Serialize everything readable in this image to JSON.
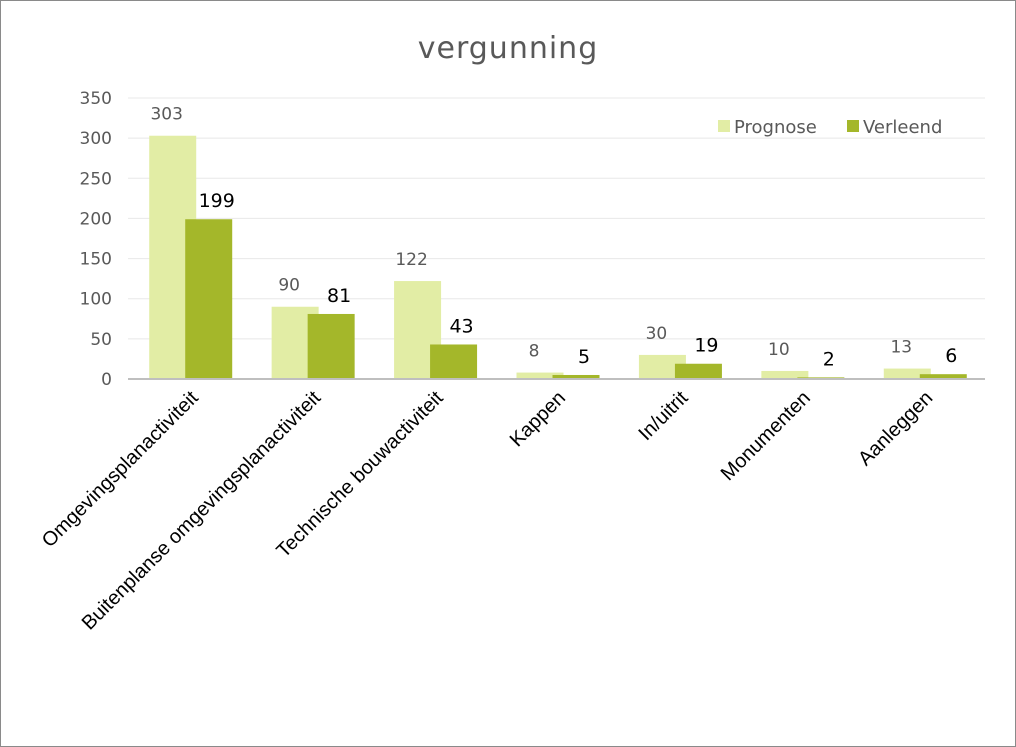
{
  "chart_data": {
    "type": "bar",
    "title": "vergunning",
    "categories": [
      "Omgevingsplanactiviteit",
      "Buitenplanse omgevingsplanactiviteit",
      "Technische bouwactiviteit",
      "Kappen",
      "In/uitrit",
      "Monumenten",
      "Aanleggen"
    ],
    "series": [
      {
        "name": "Prognose",
        "values": [
          303,
          90,
          122,
          8,
          30,
          10,
          13
        ],
        "color": "#e2eda5"
      },
      {
        "name": "Verleend",
        "values": [
          199,
          81,
          43,
          5,
          19,
          2,
          6
        ],
        "color": "#a4b72a"
      }
    ],
    "ylim": [
      0,
      350
    ],
    "yticks": [
      "0",
      "50",
      "100",
      "150",
      "200",
      "250",
      "300",
      "350"
    ],
    "grid": true,
    "legend": "top-right"
  }
}
